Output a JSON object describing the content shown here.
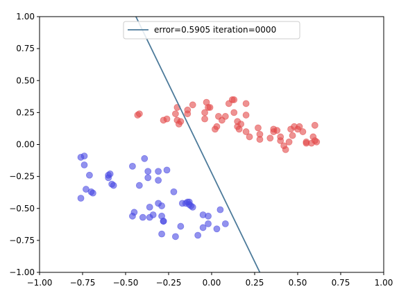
{
  "colors": {
    "class_a": "#e24a4a",
    "class_b": "#4a4ae2",
    "boundary": "#4c7a9a"
  },
  "chart_data": {
    "type": "scatter",
    "title": "",
    "xlabel": "",
    "ylabel": "",
    "xlim": [
      -1.0,
      1.0
    ],
    "ylim": [
      -1.0,
      1.0
    ],
    "grid": false,
    "legend_position": "top-center",
    "xticks": [
      "−1.00",
      "−0.75",
      "−0.50",
      "−0.25",
      "0.00",
      "0.25",
      "0.50",
      "0.75",
      "1.00"
    ],
    "yticks": [
      "−1.00",
      "−0.75",
      "−0.50",
      "−0.25",
      "0.00",
      "0.25",
      "0.50",
      "0.75",
      "1.00"
    ],
    "xtick_values": [
      -1.0,
      -0.75,
      -0.5,
      -0.25,
      0.0,
      0.25,
      0.5,
      0.75,
      1.0
    ],
    "ytick_values": [
      -1.0,
      -0.75,
      -0.5,
      -0.25,
      0.0,
      0.25,
      0.5,
      0.75,
      1.0
    ],
    "series": [
      {
        "type": "line",
        "name": "error=0.5905 iteration=0000",
        "color": "#4c7a9a",
        "points": [
          [
            -0.44,
            1.0
          ],
          [
            0.28,
            -1.0
          ]
        ]
      },
      {
        "type": "scatter",
        "color": "#e24a4a",
        "points": [
          [
            -0.43,
            0.23
          ],
          [
            -0.42,
            0.24
          ],
          [
            -0.28,
            0.19
          ],
          [
            -0.26,
            0.2
          ],
          [
            -0.21,
            0.24
          ],
          [
            -0.2,
            0.29
          ],
          [
            -0.2,
            0.19
          ],
          [
            -0.19,
            0.16
          ],
          [
            -0.18,
            0.18
          ],
          [
            -0.14,
            0.27
          ],
          [
            -0.14,
            0.24
          ],
          [
            -0.11,
            0.31
          ],
          [
            -0.04,
            0.25
          ],
          [
            -0.04,
            0.2
          ],
          [
            -0.03,
            0.33
          ],
          [
            -0.02,
            0.29
          ],
          [
            -0.01,
            0.29
          ],
          [
            0.02,
            0.12
          ],
          [
            0.03,
            0.14
          ],
          [
            0.04,
            0.22
          ],
          [
            0.06,
            0.19
          ],
          [
            0.08,
            0.22
          ],
          [
            0.1,
            0.32
          ],
          [
            0.12,
            0.35
          ],
          [
            0.13,
            0.35
          ],
          [
            0.13,
            0.25
          ],
          [
            0.15,
            0.14
          ],
          [
            0.15,
            0.18
          ],
          [
            0.16,
            0.12
          ],
          [
            0.17,
            0.16
          ],
          [
            0.2,
            0.32
          ],
          [
            0.2,
            0.23
          ],
          [
            0.2,
            0.1
          ],
          [
            0.22,
            0.06
          ],
          [
            0.27,
            0.13
          ],
          [
            0.28,
            0.04
          ],
          [
            0.28,
            0.08
          ],
          [
            0.34,
            0.05
          ],
          [
            0.36,
            0.1
          ],
          [
            0.36,
            0.12
          ],
          [
            0.38,
            0.11
          ],
          [
            0.4,
            0.06
          ],
          [
            0.4,
            0.03
          ],
          [
            0.42,
            -0.01
          ],
          [
            0.43,
            -0.04
          ],
          [
            0.45,
            0.02
          ],
          [
            0.46,
            0.12
          ],
          [
            0.47,
            0.07
          ],
          [
            0.48,
            0.14
          ],
          [
            0.5,
            0.12
          ],
          [
            0.51,
            0.14
          ],
          [
            0.53,
            0.1
          ],
          [
            0.55,
            0.02
          ],
          [
            0.55,
            0.01
          ],
          [
            0.58,
            0.01
          ],
          [
            0.59,
            0.06
          ],
          [
            0.6,
            0.03
          ],
          [
            0.6,
            0.15
          ],
          [
            0.61,
            0.02
          ]
        ]
      },
      {
        "type": "scatter",
        "color": "#4a4ae2",
        "points": [
          [
            -0.76,
            -0.1
          ],
          [
            -0.74,
            -0.09
          ],
          [
            -0.74,
            -0.16
          ],
          [
            -0.76,
            -0.42
          ],
          [
            -0.73,
            -0.35
          ],
          [
            -0.71,
            -0.24
          ],
          [
            -0.7,
            -0.37
          ],
          [
            -0.69,
            -0.38
          ],
          [
            -0.6,
            -0.24
          ],
          [
            -0.6,
            -0.26
          ],
          [
            -0.59,
            -0.23
          ],
          [
            -0.58,
            -0.31
          ],
          [
            -0.57,
            -0.32
          ],
          [
            -0.46,
            -0.17
          ],
          [
            -0.46,
            -0.56
          ],
          [
            -0.45,
            -0.53
          ],
          [
            -0.42,
            -0.32
          ],
          [
            -0.4,
            -0.57
          ],
          [
            -0.39,
            -0.11
          ],
          [
            -0.37,
            -0.21
          ],
          [
            -0.37,
            -0.26
          ],
          [
            -0.36,
            -0.49
          ],
          [
            -0.36,
            -0.57
          ],
          [
            -0.34,
            -0.55
          ],
          [
            -0.31,
            -0.21
          ],
          [
            -0.31,
            -0.28
          ],
          [
            -0.31,
            -0.46
          ],
          [
            -0.29,
            -0.48
          ],
          [
            -0.29,
            -0.56
          ],
          [
            -0.28,
            -0.6
          ],
          [
            -0.28,
            -0.6
          ],
          [
            -0.29,
            -0.7
          ],
          [
            -0.26,
            -0.2
          ],
          [
            -0.22,
            -0.37
          ],
          [
            -0.21,
            -0.72
          ],
          [
            -0.18,
            -0.64
          ],
          [
            -0.17,
            -0.46
          ],
          [
            -0.15,
            -0.46
          ],
          [
            -0.14,
            -0.45
          ],
          [
            -0.13,
            -0.45
          ],
          [
            -0.13,
            -0.47
          ],
          [
            -0.12,
            -0.48
          ],
          [
            -0.11,
            -0.49
          ],
          [
            -0.08,
            -0.71
          ],
          [
            -0.05,
            -0.55
          ],
          [
            -0.05,
            -0.65
          ],
          [
            -0.02,
            -0.62
          ],
          [
            -0.02,
            -0.56
          ],
          [
            0.03,
            -0.66
          ],
          [
            0.05,
            -0.51
          ],
          [
            0.08,
            -0.62
          ]
        ]
      }
    ]
  }
}
